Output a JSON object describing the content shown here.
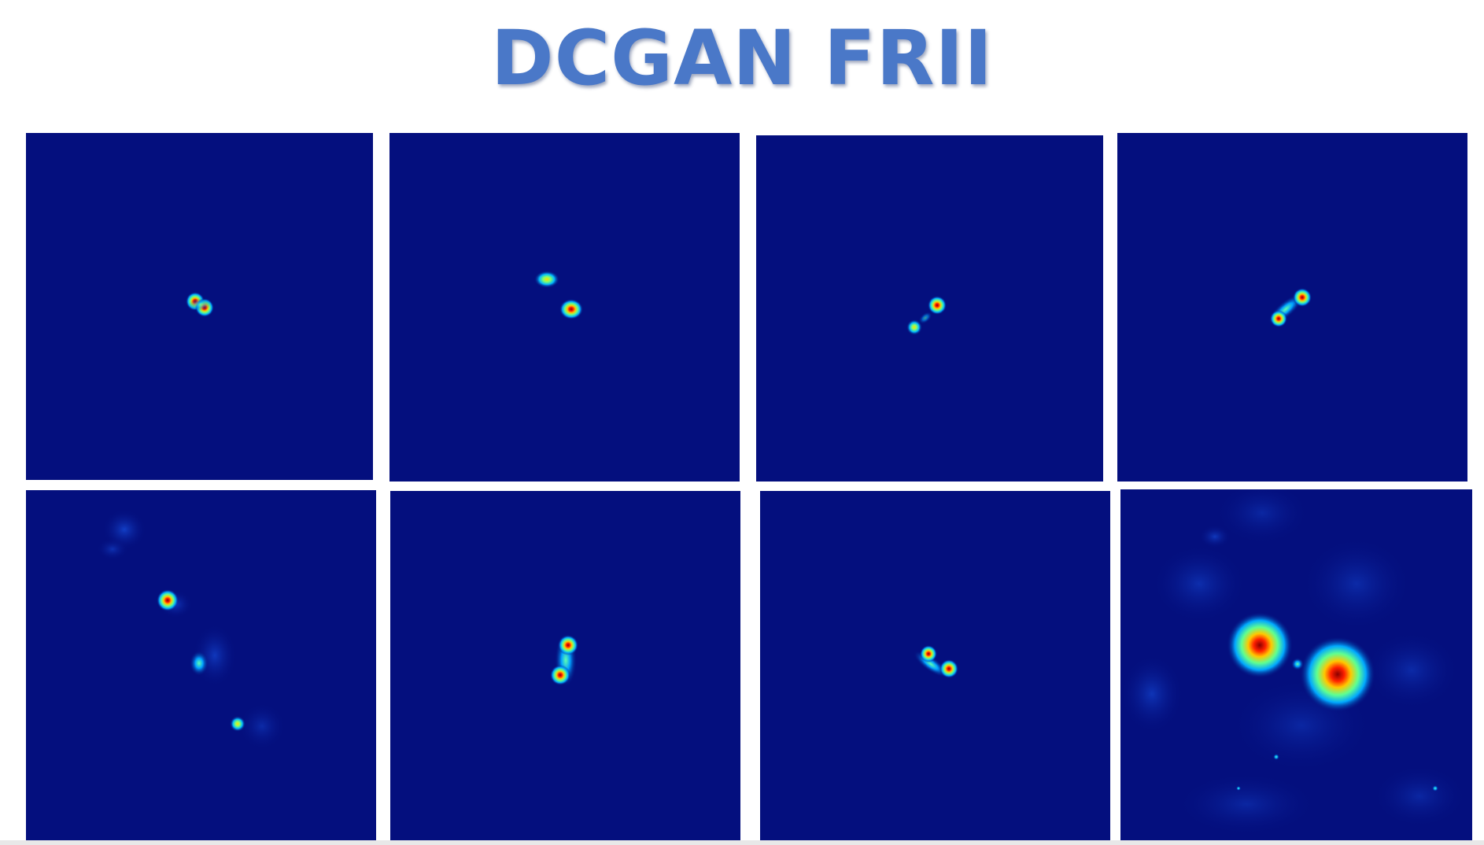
{
  "title": "DCGAN FRII",
  "colors": {
    "title": "#4a78c8",
    "background": "#ffffff",
    "panel_background": "#040f7e"
  },
  "images": [
    {
      "name": "generated-source-1",
      "description_type": "jet colormap radio image"
    },
    {
      "name": "generated-source-2",
      "description_type": "jet colormap radio image"
    },
    {
      "name": "generated-source-3",
      "description_type": "jet colormap radio image"
    },
    {
      "name": "generated-source-4",
      "description_type": "jet colormap radio image"
    },
    {
      "name": "generated-source-5",
      "description_type": "jet colormap radio image"
    },
    {
      "name": "generated-source-6",
      "description_type": "jet colormap radio image"
    },
    {
      "name": "generated-source-7",
      "description_type": "jet colormap radio image"
    },
    {
      "name": "generated-source-8",
      "description_type": "jet colormap radio image"
    }
  ]
}
